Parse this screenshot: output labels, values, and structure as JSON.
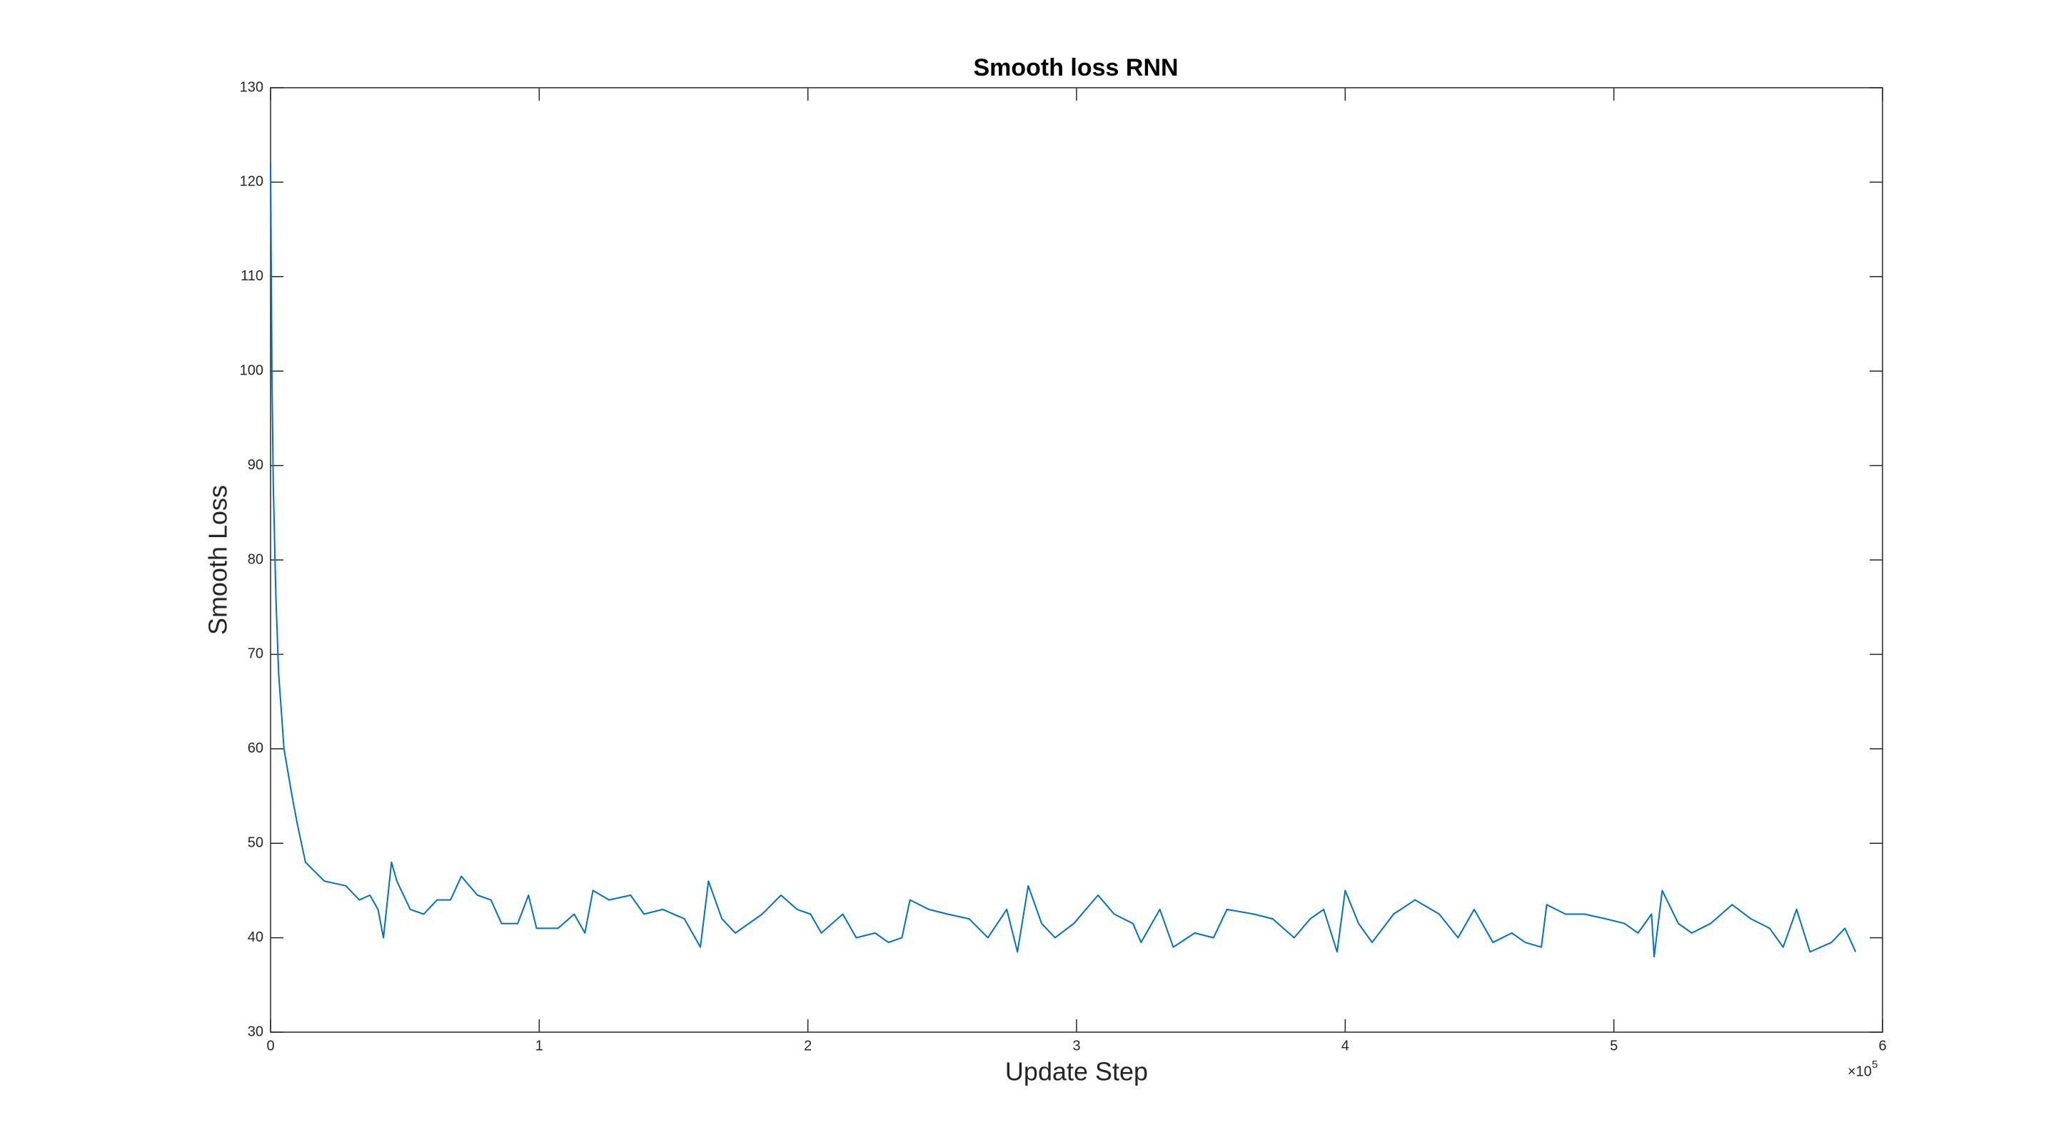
{
  "chart_data": {
    "type": "line",
    "title": "Smooth loss RNN",
    "xlabel": "Update Step",
    "ylabel": "Smooth Loss",
    "x_multiplier": {
      "base": "×10",
      "exponent": "5"
    },
    "xlim": [
      0,
      6
    ],
    "xticks": [
      0,
      1,
      2,
      3,
      4,
      5,
      6
    ],
    "ylim": [
      30,
      130
    ],
    "yticks": [
      30,
      40,
      50,
      60,
      70,
      80,
      90,
      100,
      110,
      120,
      130
    ],
    "grid": false,
    "series": [
      {
        "color": "#0072bd",
        "x": [
          0,
          0.005,
          0.01,
          0.02,
          0.03,
          0.05,
          0.08,
          0.1,
          0.13,
          0.2,
          0.28,
          0.33,
          0.37,
          0.4,
          0.42,
          0.45,
          0.47,
          0.52,
          0.57,
          0.62,
          0.67,
          0.71,
          0.77,
          0.82,
          0.86,
          0.92,
          0.96,
          0.99,
          1.07,
          1.13,
          1.17,
          1.2,
          1.26,
          1.34,
          1.39,
          1.46,
          1.54,
          1.6,
          1.63,
          1.68,
          1.73,
          1.78,
          1.83,
          1.9,
          1.96,
          2.01,
          2.05,
          2.13,
          2.18,
          2.25,
          2.3,
          2.35,
          2.38,
          2.45,
          2.52,
          2.6,
          2.67,
          2.74,
          2.78,
          2.82,
          2.87,
          2.92,
          2.99,
          3.08,
          3.14,
          3.21,
          3.24,
          3.31,
          3.36,
          3.44,
          3.51,
          3.56,
          3.66,
          3.73,
          3.81,
          3.87,
          3.92,
          3.97,
          4.0,
          4.05,
          4.1,
          4.18,
          4.26,
          4.35,
          4.42,
          4.48,
          4.55,
          4.62,
          4.67,
          4.73,
          4.75,
          4.82,
          4.89,
          4.97,
          5.04,
          5.09,
          5.14,
          5.15,
          5.18,
          5.24,
          5.29,
          5.36,
          5.44,
          5.51,
          5.58,
          5.63,
          5.68,
          5.73,
          5.81,
          5.86,
          5.9
        ],
        "values": [
          122,
          100,
          88,
          76,
          68,
          60,
          55,
          52,
          48,
          46,
          45.5,
          44,
          44.5,
          43,
          40,
          48,
          46,
          43,
          42.5,
          44,
          44,
          46.5,
          44.5,
          44,
          41.5,
          41.5,
          44.5,
          41,
          41,
          42.5,
          40.5,
          45,
          44,
          44.5,
          42.5,
          43,
          42,
          39,
          46,
          42,
          40.5,
          41.5,
          42.5,
          44.5,
          43,
          42.5,
          40.5,
          42.5,
          40,
          40.5,
          39.5,
          40,
          44,
          43,
          42.5,
          42,
          40,
          43,
          38.5,
          45.5,
          41.5,
          40,
          41.5,
          44.5,
          42.5,
          41.5,
          39.5,
          43,
          39,
          40.5,
          40,
          43,
          42.5,
          42,
          40,
          42,
          43,
          38.5,
          45,
          41.5,
          39.5,
          42.5,
          44,
          42.5,
          40,
          43,
          39.5,
          40.5,
          39.5,
          39,
          43.5,
          42.5,
          42.5,
          42,
          41.5,
          40.5,
          42.5,
          38,
          45,
          41.5,
          40.5,
          41.5,
          43.5,
          42,
          41,
          39,
          43,
          38.5,
          39.5,
          41,
          38.5
        ]
      }
    ]
  }
}
